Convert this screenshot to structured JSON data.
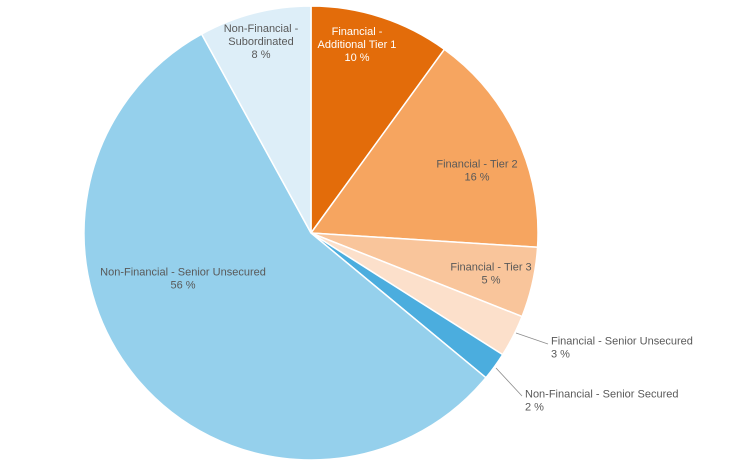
{
  "chart_data": {
    "type": "pie",
    "title": "",
    "start_angle_deg": 0,
    "direction": "clockwise",
    "slices": [
      {
        "label": "Financial - Additional Tier 1",
        "label_lines": [
          "Financial -",
          "Additional Tier 1"
        ],
        "value": 10,
        "value_text": "10 %",
        "color": "#e36c0a",
        "label_placement": "inside",
        "label_color": "#ffffff"
      },
      {
        "label": "Financial - Tier 2",
        "label_lines": [
          "Financial - Tier 2"
        ],
        "value": 16,
        "value_text": "16 %",
        "color": "#f6a560",
        "label_placement": "inside",
        "label_color": "#595959"
      },
      {
        "label": "Financial - Tier 3",
        "label_lines": [
          "Financial - Tier 3"
        ],
        "value": 5,
        "value_text": "5 %",
        "color": "#f9c59b",
        "label_placement": "inside",
        "label_color": "#595959"
      },
      {
        "label": "Financial - Senior Unsecured",
        "label_lines": [
          "Financial - Senior Unsecured"
        ],
        "value": 3,
        "value_text": "3 %",
        "color": "#fce0cb",
        "label_placement": "outside",
        "label_color": "#595959"
      },
      {
        "label": "Non-Financial - Senior Secured",
        "label_lines": [
          "Non-Financial - Senior Secured"
        ],
        "value": 2,
        "value_text": "2 %",
        "color": "#4badde",
        "label_placement": "outside",
        "label_color": "#595959"
      },
      {
        "label": "Non-Financial - Senior Unsecured",
        "label_lines": [
          "Non-Financial - Senior Unsecured"
        ],
        "value": 56,
        "value_text": "56 %",
        "color": "#95d0ec",
        "label_placement": "inside",
        "label_color": "#595959"
      },
      {
        "label": "Non-Financial - Subordinated",
        "label_lines": [
          "Non-Financial -",
          "Subordinated"
        ],
        "value": 8,
        "value_text": "8 %",
        "color": "#ddeef8",
        "label_placement": "inside",
        "label_color": "#595959"
      }
    ],
    "legend": "none",
    "data_labels": "category and percentage"
  }
}
